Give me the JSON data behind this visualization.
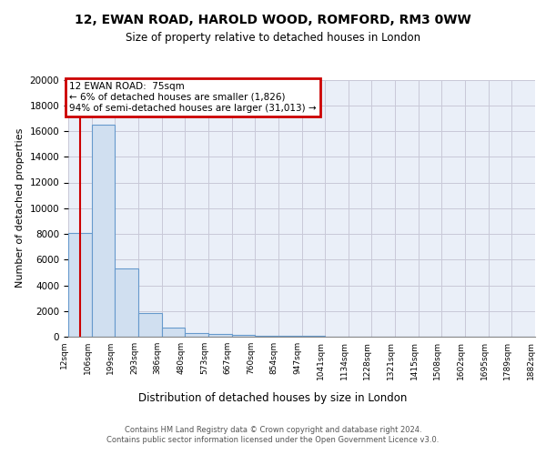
{
  "title1": "12, EWAN ROAD, HAROLD WOOD, ROMFORD, RM3 0WW",
  "title2": "Size of property relative to detached houses in London",
  "xlabel": "Distribution of detached houses by size in London",
  "ylabel": "Number of detached properties",
  "categories": [
    "12sqm",
    "106sqm",
    "199sqm",
    "293sqm",
    "386sqm",
    "480sqm",
    "573sqm",
    "667sqm",
    "760sqm",
    "854sqm",
    "947sqm",
    "1041sqm",
    "1134sqm",
    "1228sqm",
    "1321sqm",
    "1415sqm",
    "1508sqm",
    "1602sqm",
    "1695sqm",
    "1789sqm",
    "1882sqm"
  ],
  "bar_heights": [
    8100,
    16500,
    5300,
    1850,
    700,
    300,
    200,
    150,
    100,
    80,
    40,
    20,
    10,
    5,
    5,
    5,
    5,
    5,
    5,
    5
  ],
  "bar_color": "#d0dff0",
  "bar_edge_color": "#6699cc",
  "bar_edge_width": 0.8,
  "grid_color": "#c8c8d8",
  "bg_color": "#eaeff8",
  "annotation_text": "12 EWAN ROAD:  75sqm\n← 6% of detached houses are smaller (1,826)\n94% of semi-detached houses are larger (31,013) →",
  "annotation_box_color": "#ffffff",
  "annotation_box_edge_color": "#cc0000",
  "vline_color": "#cc0000",
  "ylim": [
    0,
    20000
  ],
  "yticks": [
    0,
    2000,
    4000,
    6000,
    8000,
    10000,
    12000,
    14000,
    16000,
    18000,
    20000
  ],
  "footer1": "Contains HM Land Registry data © Crown copyright and database right 2024.",
  "footer2": "Contains public sector information licensed under the Open Government Licence v3.0."
}
